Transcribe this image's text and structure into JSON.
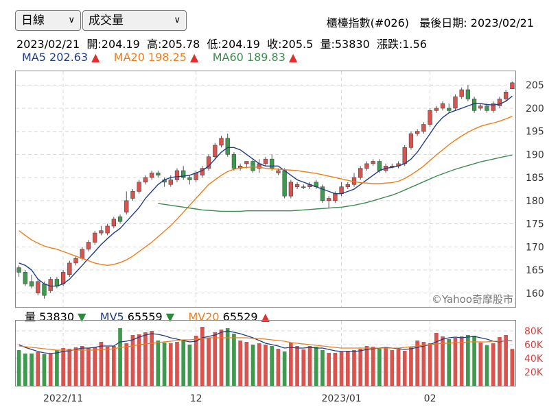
{
  "controls": {
    "period_select": {
      "value": "日線"
    },
    "indicator_select": {
      "value": "成交量"
    }
  },
  "header": {
    "index_name": "櫃檯指數(#026)",
    "last_date_label": "最後日期:",
    "last_date": "2023/02/21"
  },
  "ohlc": {
    "date": "2023/02/21",
    "open_label": "開:",
    "open": "204.19",
    "high_label": "高:",
    "high": "205.78",
    "low_label": "低:",
    "low": "204.19",
    "close_label": "收:",
    "close": "205.5",
    "volume_label": "量:",
    "volume": "53830",
    "change_label": "漲跌:",
    "change": "1.56"
  },
  "ma_legend": [
    {
      "name": "MA5",
      "value": "202.63",
      "arrow": "▲",
      "color": "#1f3c88",
      "arrow_color": "#e03030"
    },
    {
      "name": "MA20",
      "value": "198.25",
      "arrow": "▲",
      "color": "#ef7d1a",
      "arrow_color": "#e03030"
    },
    {
      "name": "MA60",
      "value": "189.83",
      "arrow": "▲",
      "color": "#3d8c4f",
      "arrow_color": "#e03030"
    }
  ],
  "vol_legend": [
    {
      "name": "量",
      "value": "53830",
      "arrow": "▼",
      "color": "#000000",
      "arrow_color": "#2e8b3e"
    },
    {
      "name": "MV5",
      "value": "65559",
      "arrow": "▼",
      "color": "#1f3c88",
      "arrow_color": "#2e8b3e"
    },
    {
      "name": "MV20",
      "value": "65529",
      "arrow": "▲",
      "color": "#ef7d1a",
      "arrow_color": "#e03030"
    }
  ],
  "watermark": "©Yahoo奇摩股市",
  "colors": {
    "up": "#d9534f",
    "down": "#3f9a4f",
    "ma5": "#1f3c88",
    "ma20": "#ef7d1a",
    "ma60": "#3d8c4f",
    "grid": "#d8d8d8",
    "axis_text": "#333333",
    "vol_axis_text": "#d94040"
  },
  "chart_data": [
    {
      "type": "candlestick",
      "ylim": [
        157,
        208
      ],
      "y_ticks": [
        160,
        165,
        170,
        175,
        180,
        185,
        190,
        195,
        200,
        205
      ],
      "x_ticks": [
        {
          "index": 7,
          "label": "2022/11"
        },
        {
          "index": 28,
          "label": "12"
        },
        {
          "index": 51,
          "label": "2023/01"
        },
        {
          "index": 65,
          "label": "02"
        }
      ],
      "candles": [
        [
          165.5,
          164.5,
          166.0,
          163.5
        ],
        [
          164.5,
          162.0,
          165.0,
          161.5
        ],
        [
          162.5,
          161.5,
          164.0,
          161.0
        ],
        [
          160.0,
          162.5,
          163.0,
          159.5
        ],
        [
          162.0,
          159.5,
          162.5,
          158.8
        ],
        [
          160.5,
          163.0,
          163.5,
          160.0
        ],
        [
          163.0,
          161.5,
          163.5,
          161.0
        ],
        [
          162.0,
          164.5,
          165.0,
          161.5
        ],
        [
          164.0,
          166.5,
          167.0,
          163.5
        ],
        [
          166.5,
          167.5,
          168.0,
          166.0
        ],
        [
          167.5,
          169.5,
          170.0,
          167.0
        ],
        [
          169.5,
          171.0,
          171.5,
          169.0
        ],
        [
          171.0,
          173.0,
          173.5,
          170.5
        ],
        [
          173.0,
          173.5,
          174.5,
          172.5
        ],
        [
          173.0,
          174.5,
          175.0,
          172.5
        ],
        [
          174.5,
          176.0,
          176.5,
          174.0
        ],
        [
          176.5,
          175.5,
          177.0,
          175.0
        ],
        [
          177.5,
          180.0,
          182.0,
          177.0
        ],
        [
          180.5,
          182.0,
          182.5,
          180.0
        ],
        [
          182.0,
          184.0,
          184.5,
          181.5
        ],
        [
          184.0,
          185.0,
          185.5,
          183.5
        ],
        [
          185.0,
          186.0,
          186.5,
          184.5
        ],
        [
          186.0,
          185.5,
          186.5,
          185.0
        ],
        [
          184.5,
          184.0,
          185.0,
          183.0
        ],
        [
          183.5,
          184.5,
          185.5,
          183.0
        ],
        [
          184.5,
          186.5,
          187.0,
          184.0
        ],
        [
          186.5,
          185.0,
          187.5,
          184.5
        ],
        [
          185.0,
          184.5,
          185.5,
          183.5
        ],
        [
          184.5,
          186.0,
          186.5,
          184.0
        ],
        [
          185.5,
          187.0,
          187.5,
          185.0
        ],
        [
          187.0,
          189.5,
          190.0,
          186.5
        ],
        [
          189.5,
          192.0,
          192.5,
          189.0
        ],
        [
          192.0,
          193.5,
          194.0,
          191.5
        ],
        [
          193.5,
          190.0,
          194.5,
          189.5
        ],
        [
          190.0,
          187.0,
          190.5,
          186.5
        ],
        [
          187.0,
          187.5,
          188.0,
          186.5
        ],
        [
          188.0,
          188.5,
          188.0,
          187.0
        ],
        [
          188.5,
          186.5,
          189.0,
          186.0
        ],
        [
          187.0,
          188.0,
          189.0,
          186.0
        ],
        [
          188.0,
          189.0,
          189.5,
          187.5
        ],
        [
          189.0,
          187.0,
          190.0,
          186.5
        ],
        [
          186.0,
          186.5,
          187.0,
          185.5
        ],
        [
          186.5,
          181.0,
          187.0,
          180.5
        ],
        [
          181.0,
          184.0,
          184.5,
          180.5
        ],
        [
          183.0,
          183.5,
          184.0,
          182.5
        ],
        [
          183.0,
          183.0,
          183.5,
          182.5
        ],
        [
          183.0,
          183.5,
          184.0,
          182.5
        ],
        [
          184.0,
          183.0,
          184.5,
          182.5
        ],
        [
          183.0,
          180.0,
          183.5,
          179.5
        ],
        [
          180.0,
          180.5,
          181.0,
          178.5
        ],
        [
          180.0,
          181.5,
          182.0,
          179.5
        ],
        [
          181.5,
          183.0,
          184.0,
          181.0
        ],
        [
          183.0,
          183.5,
          184.0,
          182.5
        ],
        [
          183.5,
          185.0,
          186.0,
          183.0
        ],
        [
          185.0,
          187.0,
          187.5,
          184.5
        ],
        [
          187.0,
          188.0,
          188.5,
          186.5
        ],
        [
          188.0,
          188.5,
          189.0,
          187.5
        ],
        [
          188.5,
          186.5,
          189.0,
          186.0
        ],
        [
          186.5,
          187.5,
          188.0,
          186.0
        ],
        [
          187.5,
          187.5,
          188.0,
          187.0
        ],
        [
          187.5,
          188.0,
          188.5,
          187.0
        ],
        [
          188.0,
          191.5,
          192.0,
          187.5
        ],
        [
          191.5,
          194.5,
          195.0,
          191.0
        ],
        [
          194.5,
          195.0,
          195.5,
          194.0
        ],
        [
          195.0,
          196.5,
          197.0,
          194.5
        ],
        [
          196.5,
          199.5,
          200.0,
          196.0
        ],
        [
          199.5,
          200.0,
          200.5,
          199.0
        ],
        [
          200.0,
          201.0,
          201.5,
          199.5
        ],
        [
          200.0,
          199.5,
          201.0,
          199.0
        ],
        [
          200.0,
          202.5,
          203.0,
          199.5
        ],
        [
          202.5,
          204.0,
          204.5,
          202.0
        ],
        [
          204.0,
          202.0,
          205.0,
          201.5
        ],
        [
          202.0,
          199.5,
          202.5,
          199.0
        ],
        [
          200.0,
          200.5,
          201.0,
          199.5
        ],
        [
          200.5,
          199.5,
          201.0,
          199.0
        ],
        [
          199.5,
          201.0,
          201.5,
          199.0
        ],
        [
          200.5,
          202.0,
          202.5,
          200.0
        ],
        [
          202.0,
          203.5,
          204.0,
          201.5
        ],
        [
          204.19,
          205.5,
          205.78,
          204.19
        ]
      ],
      "series": [
        {
          "name": "MA5",
          "values": [
            166.5,
            166,
            165,
            163,
            162,
            161.5,
            161.5,
            162,
            163,
            164.5,
            166,
            167.5,
            169,
            170.5,
            171.8,
            173,
            174,
            175.5,
            177,
            178.5,
            180.5,
            182,
            183.5,
            184.5,
            185,
            185.2,
            185.3,
            185.5,
            186,
            186.5,
            187.5,
            189,
            190.5,
            191.5,
            191.5,
            191,
            190,
            189,
            188,
            187.5,
            187.5,
            187.5,
            186.5,
            185.5,
            184.5,
            184,
            183.5,
            183,
            182.5,
            182,
            181.5,
            181.5,
            182,
            182.5,
            183.5,
            184.5,
            185.5,
            186.5,
            187,
            187.2,
            187.5,
            188,
            189,
            190.5,
            192.5,
            194.5,
            196.5,
            198,
            199,
            199.5,
            200,
            200.5,
            201,
            201,
            200.8,
            200.7,
            200.9,
            201.5,
            202.63
          ]
        },
        {
          "name": "MA20",
          "values": [
            173.5,
            172.5,
            171.5,
            170.8,
            170.2,
            169.8,
            169.5,
            169,
            168.5,
            168,
            167.5,
            167,
            166.5,
            166.2,
            166,
            166.2,
            166.6,
            167.2,
            168,
            169,
            170,
            171,
            172.2,
            173.4,
            174.6,
            176,
            177.5,
            179,
            180.5,
            182,
            183.5,
            184.5,
            185.5,
            186.3,
            186.8,
            187.1,
            187.2,
            187.3,
            187.2,
            187,
            186.9,
            186.8,
            186.7,
            186.6,
            186.5,
            186.3,
            186.1,
            185.9,
            185.6,
            185.3,
            185.0,
            184.7,
            184.4,
            184.1,
            183.9,
            183.8,
            183.7,
            183.7,
            183.8,
            183.9,
            184.2,
            184.8,
            185.6,
            186.5,
            187.5,
            188.7,
            189.9,
            191.0,
            192.1,
            193.1,
            194.0,
            194.8,
            195.5,
            196.1,
            196.5,
            196.8,
            197.2,
            197.7,
            198.25
          ]
        },
        {
          "name": "MA60",
          "values": [
            null,
            null,
            null,
            null,
            null,
            null,
            null,
            null,
            null,
            null,
            null,
            null,
            null,
            null,
            null,
            null,
            null,
            null,
            null,
            null,
            null,
            null,
            179.4,
            179.2,
            179.0,
            178.8,
            178.6,
            178.4,
            178.2,
            178.0,
            177.9,
            177.8,
            177.7,
            177.7,
            177.7,
            177.7,
            177.8,
            177.8,
            177.8,
            177.8,
            177.8,
            177.8,
            177.8,
            177.8,
            177.9,
            178.0,
            178.1,
            178.2,
            178.3,
            178.4,
            178.5,
            178.6,
            178.8,
            179.0,
            179.3,
            179.6,
            180.0,
            180.4,
            180.8,
            181.2,
            181.7,
            182.3,
            182.9,
            183.5,
            184.1,
            184.7,
            185.3,
            185.8,
            186.3,
            186.8,
            187.2,
            187.6,
            188.0,
            188.4,
            188.7,
            189.0,
            189.3,
            189.6,
            189.83
          ]
        }
      ]
    },
    {
      "type": "bar",
      "ylim": [
        0,
        95000
      ],
      "y_ticks": [
        {
          "value": 20000,
          "label": "20K"
        },
        {
          "value": 40000,
          "label": "40K"
        },
        {
          "value": 60000,
          "label": "60K"
        },
        {
          "value": 80000,
          "label": "80K"
        }
      ],
      "values": [
        52000,
        47000,
        47000,
        49000,
        46000,
        47000,
        52000,
        55000,
        54000,
        56000,
        58000,
        55000,
        56000,
        64000,
        57000,
        58000,
        84000,
        62000,
        74000,
        75000,
        78000,
        80000,
        66000,
        63000,
        62000,
        64000,
        67000,
        60000,
        73000,
        86000,
        70000,
        78000,
        82000,
        84000,
        76000,
        66000,
        64000,
        60000,
        62000,
        60000,
        58000,
        54000,
        50000,
        63000,
        58000,
        53000,
        58000,
        57000,
        52000,
        48000,
        48000,
        50000,
        51000,
        52000,
        54000,
        58000,
        57000,
        55000,
        56000,
        52000,
        53000,
        51000,
        56000,
        66000,
        64000,
        62000,
        77000,
        72000,
        68000,
        70000,
        72000,
        74000,
        73000,
        63000,
        59000,
        62000,
        71000,
        74000,
        53830
      ],
      "series": [
        {
          "name": "MV5",
          "values": [
            60000,
            56000,
            53000,
            50000,
            48000,
            47000,
            48000,
            50000,
            51000,
            53000,
            55000,
            55000,
            56000,
            58000,
            58000,
            58000,
            64000,
            65000,
            67000,
            71000,
            74000,
            76000,
            75000,
            73000,
            70000,
            68000,
            66000,
            64000,
            65000,
            70000,
            72000,
            74000,
            78000,
            80000,
            78000,
            76000,
            73000,
            70000,
            66000,
            62000,
            60000,
            58000,
            55000,
            56000,
            55000,
            55000,
            56000,
            55000,
            55000,
            53000,
            51000,
            50000,
            50000,
            50000,
            51000,
            53000,
            54000,
            55000,
            56000,
            55000,
            54000,
            53000,
            54000,
            56000,
            58000,
            60000,
            64000,
            68000,
            70000,
            71000,
            70000,
            71000,
            72000,
            70000,
            68000,
            65000,
            64000,
            66000,
            65559
          ]
        },
        {
          "name": "MV20",
          "values": [
            58000,
            57000,
            56000,
            55000,
            54000,
            53000,
            52000,
            52000,
            52000,
            52000,
            52000,
            52000,
            52000,
            53000,
            53000,
            54000,
            56000,
            57000,
            58000,
            60000,
            61000,
            62000,
            63000,
            64000,
            65000,
            66000,
            67000,
            67000,
            68000,
            69000,
            70000,
            70000,
            70000,
            70000,
            70000,
            70000,
            70000,
            69000,
            69000,
            68000,
            67000,
            66000,
            65000,
            63000,
            62000,
            61000,
            60000,
            59000,
            58000,
            57000,
            56000,
            55000,
            55000,
            55000,
            55000,
            55000,
            55000,
            55000,
            55000,
            55000,
            55000,
            56000,
            57000,
            58000,
            59000,
            60000,
            61000,
            62000,
            62000,
            63000,
            63000,
            64000,
            64000,
            64000,
            64000,
            65000,
            65000,
            65500,
            65529
          ]
        }
      ]
    }
  ]
}
